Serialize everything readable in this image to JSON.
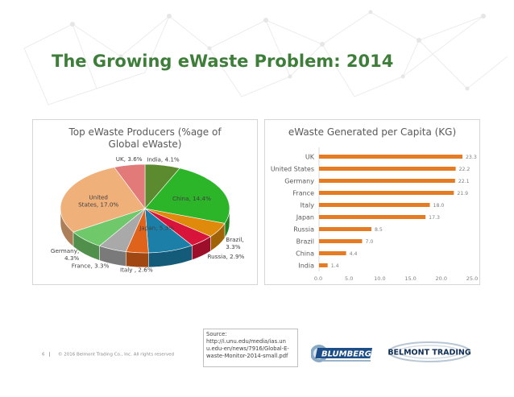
{
  "slide": {
    "title": "The Growing eWaste Problem: 2014",
    "page_number": "6",
    "copyright": "© 2016 Belmont Trading Co., Inc. All rights reserved",
    "source_lines": [
      "Source:",
      "http://i.unu.edu/media/ias.un",
      "u.edu-en/news/7916/Global-E-",
      "waste-Monitor-2014-small.pdf"
    ],
    "logos": [
      "BLUMBERG",
      "BELMONT TRADING"
    ]
  },
  "chart_data": [
    {
      "type": "pie",
      "title": "Top eWaste Producers (%age of Global eWaste)",
      "title_lines": [
        "Top eWaste Producers (%age of",
        "Global eWaste)"
      ],
      "slices": [
        {
          "label": "India, 4.1%",
          "lines": [
            "India, 4.1%"
          ],
          "value": 4.1,
          "color": "#5c8a2e"
        },
        {
          "label": "China, 14.4%",
          "lines": [
            "China, 14.4%"
          ],
          "value": 14.4,
          "color": "#2db52a"
        },
        {
          "label": "Brazil, 3.3%",
          "lines": [
            "Brazil,",
            "3.3%"
          ],
          "value": 3.3,
          "color": "#e08a0b"
        },
        {
          "label": "Russia, 2.9%",
          "lines": [
            "Russia, 2.9%"
          ],
          "value": 2.9,
          "color": "#d9143a"
        },
        {
          "label": "Japan, 5.3%",
          "lines": [
            "Japan, 5.3%"
          ],
          "value": 5.3,
          "color": "#1c7fa8"
        },
        {
          "label": "Italy , 2.6%",
          "lines": [
            "Italy , 2.6%"
          ],
          "value": 2.6,
          "color": "#e0631c"
        },
        {
          "label": "France, 3.3%",
          "lines": [
            "France, 3.3%"
          ],
          "value": 3.3,
          "color": "#a9a9a9"
        },
        {
          "label": "Germany, 4.3%",
          "lines": [
            "Germany,",
            "4.3%"
          ],
          "value": 4.3,
          "color": "#6fc86a"
        },
        {
          "label": "United States, 17.0%",
          "lines": [
            "United",
            "States, 17.0%"
          ],
          "value": 17.0,
          "color": "#f0b07a"
        },
        {
          "label": "UK, 3.6%",
          "lines": [
            "UK, 3.6%"
          ],
          "value": 3.6,
          "color": "#e27a7a"
        }
      ]
    },
    {
      "type": "bar",
      "orientation": "horizontal",
      "title": "eWaste Generated per Capita (KG)",
      "categories": [
        "UK",
        "United States",
        "Germany",
        "France",
        "Italy",
        "Japan",
        "Russia",
        "Brazil",
        "China",
        "India"
      ],
      "values": [
        23.3,
        22.2,
        22.1,
        21.9,
        18.0,
        17.3,
        8.5,
        7.0,
        4.4,
        1.4
      ],
      "value_labels": [
        "23.3",
        "22.2",
        "22.1",
        "21.9",
        "18.0",
        "17.3",
        "8.5",
        "7.0",
        "4.4",
        "1.4"
      ],
      "x_ticks": [
        "0.0",
        "5.0",
        "10.0",
        "15.0",
        "20.0",
        "25.0"
      ],
      "xlim": [
        0,
        25
      ],
      "bar_color": "#e57b22"
    }
  ]
}
